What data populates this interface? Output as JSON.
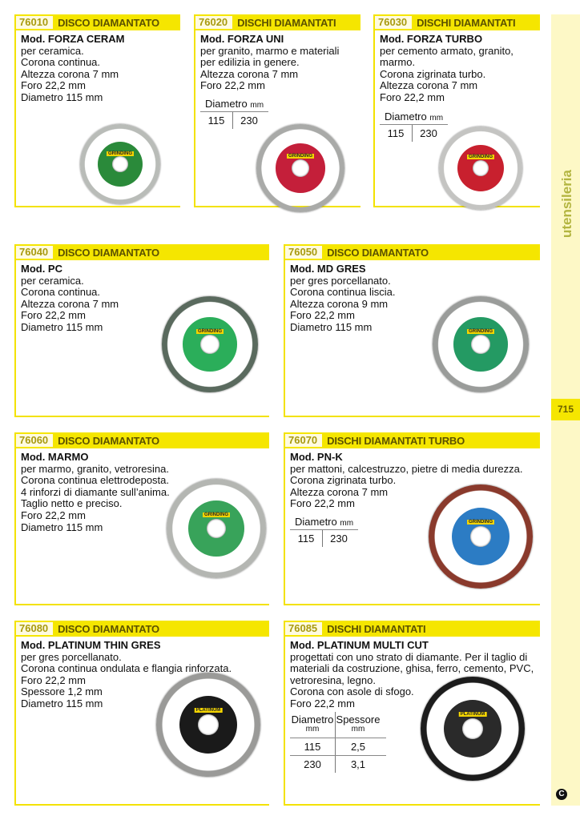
{
  "sidebar": {
    "section": "utensileria",
    "page_number": "715",
    "logo_letter": "C"
  },
  "products": [
    {
      "code": "76010",
      "title": "DISCO DIAMANTATO",
      "model": "Mod. FORZA CERAM",
      "lines": [
        "per ceramica.",
        "Corona continua.",
        "Altezza corona 7 mm",
        "Foro 22,2 mm",
        "Diametro 115 mm"
      ],
      "disc": {
        "rim": "#b9bcb8",
        "label": "#2a8a3a",
        "brand": "GRINDING"
      }
    },
    {
      "code": "76020",
      "title": "DISCHI DIAMANTATI",
      "model": "Mod. FORZA UNI",
      "lines": [
        "per granito, marmo e materiali",
        "per edilizia in genere.",
        "Altezza corona 7 mm",
        "Foro 22,2 mm"
      ],
      "table": {
        "header": "Diametro",
        "unit": "mm",
        "values": [
          "115",
          "230"
        ]
      },
      "disc": {
        "rim": "#a9aaa8",
        "label": "#c41f3a",
        "brand": "GRINDING"
      }
    },
    {
      "code": "76030",
      "title": "DISCHI DIAMANTATI",
      "model": "Mod. FORZA TURBO",
      "lines": [
        "per cemento armato, granito,",
        "marmo.",
        "Corona zigrinata turbo.",
        "Altezza corona 7 mm",
        "Foro 22,2 mm"
      ],
      "table": {
        "header": "Diametro",
        "unit": "mm",
        "values": [
          "115",
          "230"
        ]
      },
      "disc": {
        "rim": "#c4c4c2",
        "label": "#c8202e",
        "brand": "GRINDING"
      }
    },
    {
      "code": "76040",
      "title": "DISCO DIAMANTATO",
      "model": "Mod. PC",
      "lines": [
        "per ceramica.",
        "Corona continua.",
        "Altezza corona 7 mm",
        "Foro 22,2 mm",
        "Diametro 115 mm"
      ],
      "disc": {
        "rim": "#5a6a5e",
        "label": "#2bae5a",
        "brand": "GRINDING"
      }
    },
    {
      "code": "76050",
      "title": "DISCO DIAMANTATO",
      "model": "Mod. MD GRES",
      "lines": [
        "per gres porcellanato.",
        "Corona continua liscia.",
        "Altezza corona 9 mm",
        "Foro 22,2 mm",
        "Diametro 115 mm"
      ],
      "disc": {
        "rim": "#9a9c9a",
        "label": "#249a63",
        "brand": "GRINDING"
      }
    },
    {
      "code": "76060",
      "title": "DISCO DIAMANTATO",
      "model": "Mod. MARMO",
      "lines": [
        "per marmo, granito, vetroresina.",
        "Corona continua elettrodeposta.",
        "4 rinforzi di diamante sull’anima.",
        "Taglio netto e preciso.",
        "Foro 22,2 mm",
        "Diametro 115 mm"
      ],
      "disc": {
        "rim": "#b4b6b2",
        "label": "#38a35a",
        "brand": "GRINDING"
      }
    },
    {
      "code": "76070",
      "title": "DISCHI DIAMANTATI TURBO",
      "model": "Mod. PN-K",
      "lines": [
        "per mattoni, calcestruzzo, pietre di media durezza.",
        "Corona zigrinata turbo.",
        "Altezza corona 7 mm",
        "Foro 22,2 mm"
      ],
      "table": {
        "header": "Diametro",
        "unit": "mm",
        "values": [
          "115",
          "230"
        ]
      },
      "disc": {
        "rim": "#8a3a2c",
        "label": "#2c7cc4",
        "brand": "GRINDING"
      }
    },
    {
      "code": "76080",
      "title": "DISCO DIAMANTATO",
      "model": "Mod. PLATINUM THIN GRES",
      "lines": [
        "per gres porcellanato.",
        "Corona continua ondulata e flangia rinforzata.",
        "Foro 22,2 mm",
        "Spessore 1,2 mm",
        "Diametro 115 mm"
      ],
      "disc": {
        "rim": "#9a9a98",
        "label": "#1a1a1a",
        "brand": "PLATINUM"
      }
    },
    {
      "code": "76085",
      "title": "DISCHI DIAMANTATI",
      "model": "Mod. PLATINUM MULTI CUT",
      "lines": [
        "progettati con uno strato di diamante. Per il taglio di",
        "materiali da costruzione, ghisa, ferro, cemento, PVC,",
        "vetroresina, legno.",
        "Corona con asole di sfogo.",
        "Foro 22,2 mm"
      ],
      "table2": {
        "headers": [
          "Diametro",
          "Spessore"
        ],
        "units": [
          "mm",
          "mm"
        ],
        "rows": [
          [
            "115",
            "2,5"
          ],
          [
            "230",
            "3,1"
          ]
        ]
      },
      "disc": {
        "rim": "#1c1c1c",
        "label": "#2a2a2a",
        "brand": "PLATINUM"
      }
    }
  ],
  "colors": {
    "accent_yellow": "#f5e600",
    "sidebar_bg": "#fdf8c6",
    "section_text": "#b3b540"
  }
}
